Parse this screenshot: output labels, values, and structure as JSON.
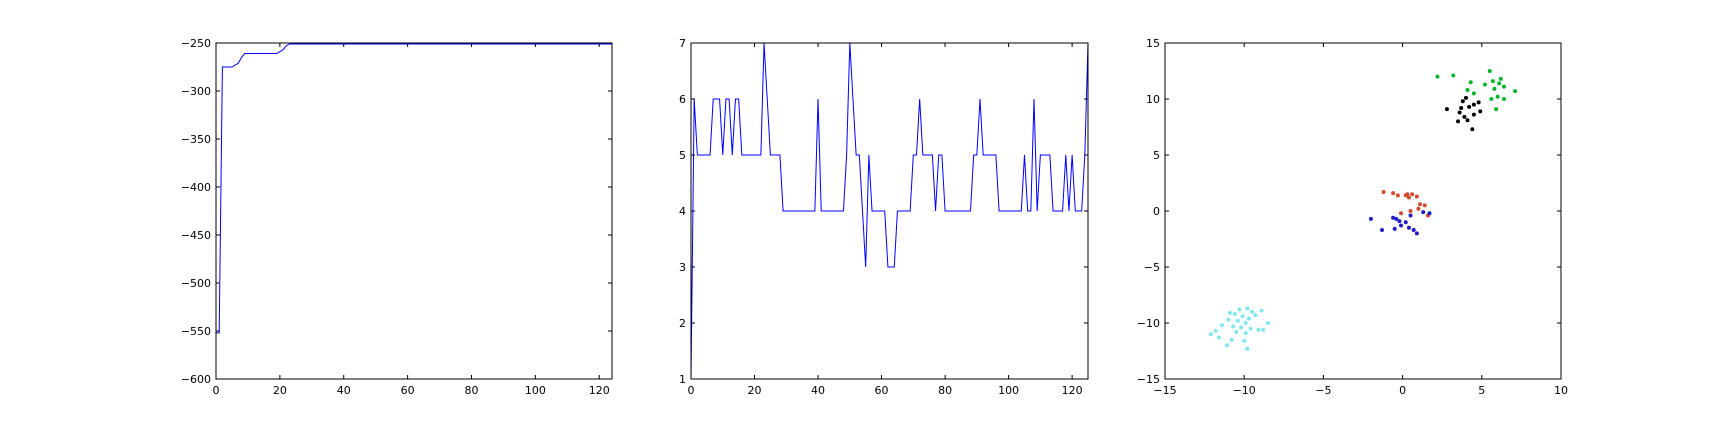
{
  "colors": {
    "axes_frame": "#000000",
    "line": "#0000ff",
    "cluster_green": "#00b52a",
    "cluster_black": "#000000",
    "cluster_red": "#d24a2c",
    "cluster_blue": "#1e1ec8",
    "cluster_cyan": "#7fe8ee"
  },
  "chart_data": [
    {
      "type": "line",
      "title": "",
      "xlabel": "",
      "ylabel": "",
      "xlim": [
        0,
        124
      ],
      "ylim": [
        -600,
        -250
      ],
      "xticks": [
        "0",
        "20",
        "40",
        "60",
        "80",
        "100",
        "120"
      ],
      "yticks": [
        "-600",
        "-550",
        "-500",
        "-450",
        "-400",
        "-350",
        "-300",
        "-250"
      ],
      "grid": false,
      "x": [
        0,
        1,
        2,
        3,
        4,
        5,
        6,
        7,
        8,
        9,
        10,
        11,
        12,
        13,
        14,
        15,
        16,
        17,
        18,
        19,
        20,
        21,
        22,
        23,
        24,
        124
      ],
      "y": [
        -552,
        -552,
        -275,
        -275,
        -275,
        -275,
        -273,
        -271,
        -265,
        -261,
        -261,
        -261,
        -261,
        -261,
        -261,
        -261,
        -261,
        -261,
        -261,
        -261,
        -259,
        -257,
        -253,
        -251,
        -251,
        -251
      ]
    },
    {
      "type": "line",
      "title": "",
      "xlabel": "",
      "ylabel": "",
      "xlim": [
        0,
        125
      ],
      "ylim": [
        1,
        7
      ],
      "xticks": [
        "0",
        "20",
        "40",
        "60",
        "80",
        "100",
        "120"
      ],
      "yticks": [
        "1",
        "2",
        "3",
        "4",
        "5",
        "6",
        "7"
      ],
      "grid": false,
      "x": [
        0,
        1,
        2,
        3,
        4,
        5,
        6,
        7,
        8,
        9,
        10,
        11,
        12,
        13,
        14,
        15,
        16,
        17,
        18,
        19,
        20,
        21,
        22,
        23,
        24,
        25,
        26,
        27,
        28,
        29,
        30,
        31,
        32,
        33,
        34,
        35,
        36,
        37,
        38,
        39,
        40,
        41,
        42,
        43,
        44,
        45,
        46,
        47,
        48,
        49,
        50,
        51,
        52,
        53,
        54,
        55,
        56,
        57,
        58,
        59,
        60,
        61,
        62,
        63,
        64,
        65,
        66,
        67,
        68,
        69,
        70,
        71,
        72,
        73,
        74,
        75,
        76,
        77,
        78,
        79,
        80,
        81,
        82,
        83,
        84,
        85,
        86,
        87,
        88,
        89,
        90,
        91,
        92,
        93,
        94,
        95,
        96,
        97,
        98,
        99,
        100,
        101,
        102,
        103,
        104,
        105,
        106,
        107,
        108,
        109,
        110,
        111,
        112,
        113,
        114,
        115,
        116,
        117,
        118,
        119,
        120,
        121,
        122,
        123,
        124,
        125
      ],
      "y": [
        1,
        6,
        5,
        5,
        5,
        5,
        5,
        6,
        6,
        6,
        5,
        6,
        6,
        5,
        6,
        6,
        5,
        5,
        5,
        5,
        5,
        5,
        5,
        7,
        6,
        5,
        5,
        5,
        5,
        4,
        4,
        4,
        4,
        4,
        4,
        4,
        4,
        4,
        4,
        4,
        6,
        4,
        4,
        4,
        4,
        4,
        4,
        4,
        4,
        5,
        7,
        6,
        5,
        5,
        4,
        3,
        5,
        4,
        4,
        4,
        4,
        4,
        3,
        3,
        3,
        4,
        4,
        4,
        4,
        4,
        5,
        5,
        6,
        5,
        5,
        5,
        5,
        4,
        5,
        5,
        4,
        4,
        4,
        4,
        4,
        4,
        4,
        4,
        4,
        5,
        5,
        6,
        5,
        5,
        5,
        5,
        5,
        4,
        4,
        4,
        4,
        4,
        4,
        4,
        4,
        5,
        4,
        4,
        6,
        4,
        5,
        5,
        5,
        5,
        4,
        4,
        4,
        4,
        5,
        4,
        5,
        4,
        4,
        4,
        5,
        7
      ]
    },
    {
      "type": "scatter",
      "title": "",
      "xlabel": "",
      "ylabel": "",
      "xlim": [
        -15,
        10
      ],
      "ylim": [
        -15,
        15
      ],
      "xticks": [
        "-15",
        "-10",
        "-5",
        "0",
        "5",
        "10"
      ],
      "yticks": [
        "-15",
        "-10",
        "-5",
        "0",
        "5",
        "10",
        "15"
      ],
      "grid": false,
      "series": [
        {
          "color_key": "cluster_green",
          "points": [
            [
              2.2,
              12.0
            ],
            [
              3.2,
              12.1
            ],
            [
              5.5,
              12.5
            ],
            [
              4.3,
              11.5
            ],
            [
              5.2,
              11.3
            ],
            [
              5.7,
              11.6
            ],
            [
              6.1,
              11.4
            ],
            [
              6.4,
              11.1
            ],
            [
              5.8,
              10.9
            ],
            [
              4.1,
              10.8
            ],
            [
              4.5,
              10.5
            ],
            [
              6.0,
              10.2
            ],
            [
              6.4,
              10.0
            ],
            [
              5.6,
              10.0
            ],
            [
              7.1,
              10.7
            ],
            [
              6.2,
              11.8
            ],
            [
              5.9,
              9.1
            ]
          ]
        },
        {
          "color_key": "cluster_black",
          "points": [
            [
              2.8,
              9.1
            ],
            [
              3.8,
              9.8
            ],
            [
              4.0,
              10.1
            ],
            [
              4.5,
              9.5
            ],
            [
              4.8,
              9.7
            ],
            [
              4.2,
              9.3
            ],
            [
              3.6,
              8.8
            ],
            [
              4.9,
              8.9
            ],
            [
              4.5,
              8.6
            ],
            [
              3.9,
              8.4
            ],
            [
              3.5,
              8.0
            ],
            [
              4.1,
              8.1
            ],
            [
              4.4,
              7.3
            ],
            [
              3.7,
              9.2
            ]
          ]
        },
        {
          "color_key": "cluster_red",
          "points": [
            [
              -1.2,
              1.7
            ],
            [
              -0.6,
              1.6
            ],
            [
              -0.3,
              1.4
            ],
            [
              0.2,
              1.4
            ],
            [
              0.6,
              1.5
            ],
            [
              0.9,
              1.3
            ],
            [
              0.4,
              1.2
            ],
            [
              1.1,
              0.6
            ],
            [
              1.4,
              0.5
            ],
            [
              1.0,
              0.2
            ],
            [
              0.5,
              0.0
            ],
            [
              -0.1,
              -0.2
            ],
            [
              1.6,
              -0.4
            ],
            [
              0.3,
              1.5
            ]
          ]
        },
        {
          "color_key": "cluster_blue",
          "points": [
            [
              -2.0,
              -0.7
            ],
            [
              -1.3,
              -1.7
            ],
            [
              -0.6,
              -0.6
            ],
            [
              -0.4,
              -0.7
            ],
            [
              -0.2,
              -0.9
            ],
            [
              -0.1,
              -1.3
            ],
            [
              0.2,
              -1.0
            ],
            [
              0.5,
              -0.4
            ],
            [
              -0.5,
              -1.6
            ],
            [
              0.7,
              -1.7
            ],
            [
              0.4,
              -1.5
            ],
            [
              0.9,
              -2.0
            ],
            [
              1.7,
              -0.2
            ],
            [
              1.3,
              -0.1
            ]
          ]
        },
        {
          "color_key": "cluster_cyan",
          "points": [
            [
              -9.8,
              -8.7
            ],
            [
              -10.3,
              -8.8
            ],
            [
              -9.5,
              -9.0
            ],
            [
              -10.6,
              -9.2
            ],
            [
              -10.1,
              -9.4
            ],
            [
              -9.7,
              -9.6
            ],
            [
              -11.0,
              -9.7
            ],
            [
              -10.4,
              -9.8
            ],
            [
              -9.9,
              -10.0
            ],
            [
              -8.5,
              -10.0
            ],
            [
              -11.4,
              -10.2
            ],
            [
              -10.7,
              -10.3
            ],
            [
              -10.2,
              -10.4
            ],
            [
              -9.6,
              -10.5
            ],
            [
              -9.1,
              -10.6
            ],
            [
              -8.8,
              -10.6
            ],
            [
              -11.8,
              -10.7
            ],
            [
              -10.5,
              -10.8
            ],
            [
              -9.9,
              -10.9
            ],
            [
              -12.1,
              -11.0
            ],
            [
              -11.6,
              -11.3
            ],
            [
              -10.8,
              -11.5
            ],
            [
              -10.0,
              -11.6
            ],
            [
              -11.1,
              -12.0
            ],
            [
              -9.8,
              -12.3
            ],
            [
              -9.3,
              -9.3
            ],
            [
              -10.9,
              -9.1
            ],
            [
              -8.9,
              -8.9
            ]
          ]
        }
      ]
    }
  ]
}
